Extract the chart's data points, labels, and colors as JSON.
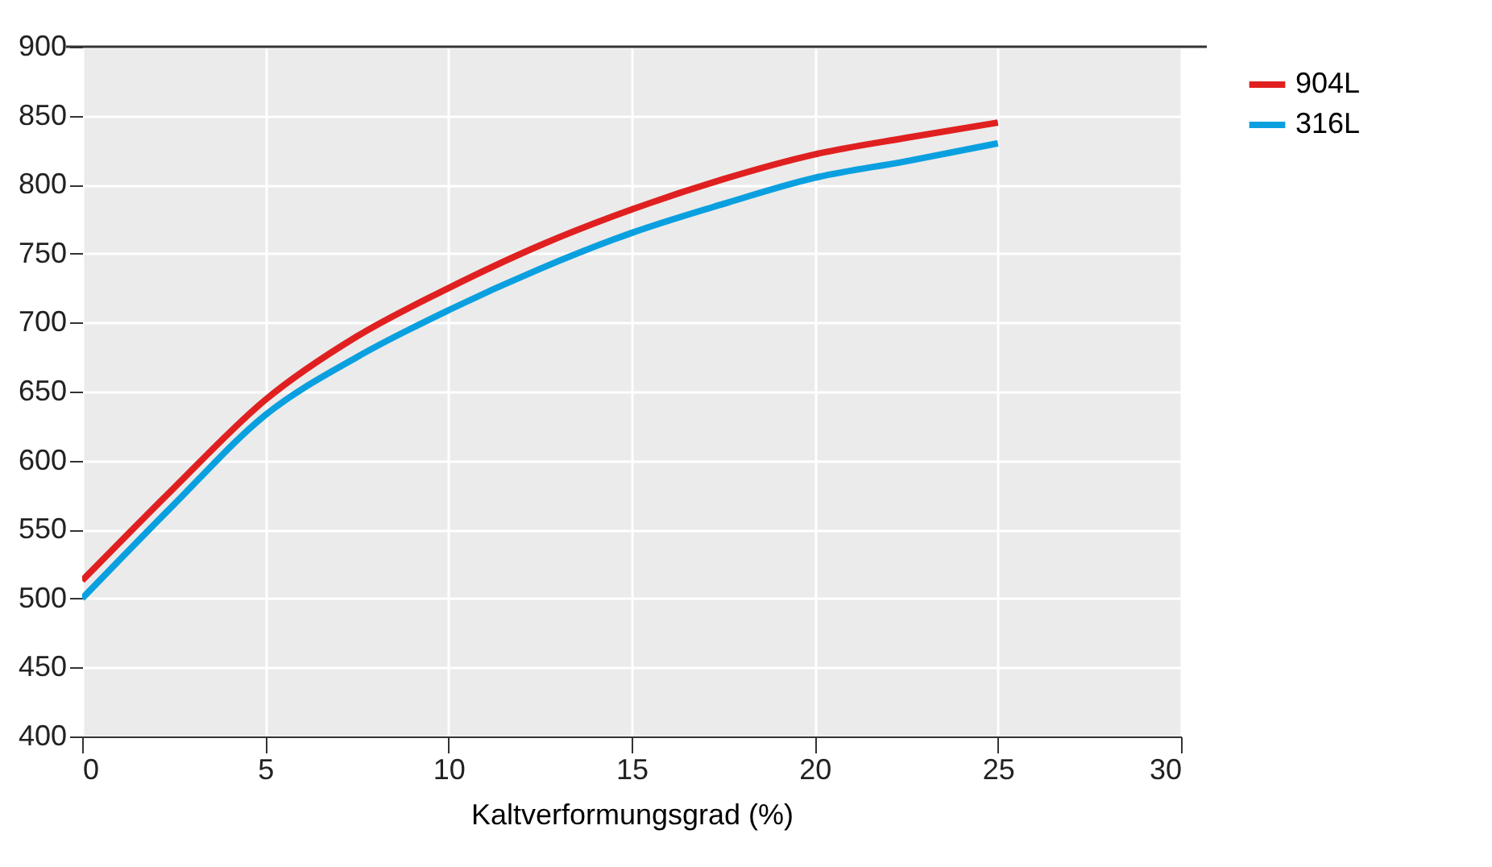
{
  "chart_data": {
    "type": "line",
    "xlabel": "Kaltverformungsgrad (%)",
    "x": [
      0,
      2.5,
      5,
      7.5,
      10,
      12.5,
      15,
      17.5,
      20,
      22.5,
      25
    ],
    "series": [
      {
        "name": "904L",
        "color": "#e02020",
        "values": [
          513,
          580,
          644,
          690,
          725,
          756,
          782,
          804,
          822,
          834,
          845
        ]
      },
      {
        "name": "316L",
        "color": "#0aa0e0",
        "values": [
          500,
          568,
          633,
          675,
          709,
          739,
          765,
          786,
          805,
          817,
          830
        ]
      }
    ],
    "xlim": [
      0,
      30
    ],
    "xticks": [
      0,
      5,
      10,
      15,
      20,
      25,
      30
    ],
    "ylim": [
      400,
      900
    ],
    "yticks": [
      400,
      450,
      500,
      550,
      600,
      650,
      700,
      750,
      800,
      850,
      900
    ],
    "grid": true,
    "legend": "right",
    "marker": "none",
    "line_style": "solid"
  }
}
